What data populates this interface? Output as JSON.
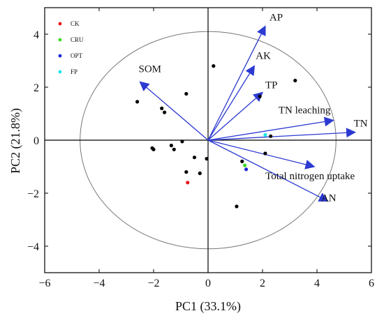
{
  "chart_data": {
    "type": "biplot",
    "xlabel": "PC1 (33.1%)",
    "ylabel": "PC2 (21.8%)",
    "xlim": [
      -6,
      6
    ],
    "ylim": [
      -5,
      5
    ],
    "xticks": [
      -6,
      -4,
      -2,
      0,
      2,
      4,
      6
    ],
    "yticks": [
      -4,
      -2,
      0,
      2,
      4
    ],
    "grid": false,
    "zero_lines": true,
    "circle": {
      "center": [
        0,
        0
      ],
      "radii": [
        4.7,
        4.1
      ]
    },
    "legend": {
      "placement": "top-left",
      "entries": [
        {
          "label": "CK",
          "color": "#e8141c"
        },
        {
          "label": "CRU",
          "color": "#3cdc28"
        },
        {
          "label": "OPT",
          "color": "#1c28d2"
        },
        {
          "label": "FP",
          "color": "#1ee6e6"
        }
      ]
    },
    "vector_color": "#2c3ad2",
    "vectors": [
      {
        "name": "AP",
        "x": 2.1,
        "y": 4.3
      },
      {
        "name": "AK",
        "x": 1.7,
        "y": 2.8
      },
      {
        "name": "TP",
        "x": 2.0,
        "y": 1.8
      },
      {
        "name": "SOM",
        "x": -2.5,
        "y": 2.2
      },
      {
        "name": "TN leaching",
        "x": 4.6,
        "y": 0.75
      },
      {
        "name": "TN",
        "x": 5.4,
        "y": 0.3
      },
      {
        "name": "Total nitrogen uptake",
        "x": 3.9,
        "y": -1.0
      },
      {
        "name": "AN",
        "x": 4.4,
        "y": -2.3
      }
    ],
    "points": [
      {
        "x": 0.2,
        "y": 2.8,
        "group": ""
      },
      {
        "x": 3.2,
        "y": 2.25,
        "group": ""
      },
      {
        "x": -0.8,
        "y": 1.75,
        "group": ""
      },
      {
        "x": 1.9,
        "y": 1.65,
        "group": ""
      },
      {
        "x": -2.6,
        "y": 1.45,
        "group": ""
      },
      {
        "x": -1.7,
        "y": 1.2,
        "group": ""
      },
      {
        "x": -1.6,
        "y": 1.05,
        "group": ""
      },
      {
        "x": 2.3,
        "y": 0.15,
        "group": ""
      },
      {
        "x": -0.95,
        "y": -0.05,
        "group": ""
      },
      {
        "x": -1.35,
        "y": -0.2,
        "group": ""
      },
      {
        "x": -2.05,
        "y": -0.3,
        "group": ""
      },
      {
        "x": -2.0,
        "y": -0.35,
        "group": ""
      },
      {
        "x": -1.25,
        "y": -0.35,
        "group": ""
      },
      {
        "x": 2.1,
        "y": -0.5,
        "group": ""
      },
      {
        "x": -0.5,
        "y": -0.65,
        "group": ""
      },
      {
        "x": -0.05,
        "y": -0.7,
        "group": ""
      },
      {
        "x": 1.25,
        "y": -0.8,
        "group": ""
      },
      {
        "x": -0.8,
        "y": -1.2,
        "group": ""
      },
      {
        "x": -0.3,
        "y": -1.25,
        "group": ""
      },
      {
        "x": 1.05,
        "y": -2.5,
        "group": ""
      },
      {
        "x": -0.75,
        "y": -1.6,
        "group": "CK"
      },
      {
        "x": 1.35,
        "y": -0.95,
        "group": "CRU"
      },
      {
        "x": 1.4,
        "y": -1.1,
        "group": "OPT"
      },
      {
        "x": 2.1,
        "y": 0.2,
        "group": "FP"
      }
    ]
  }
}
